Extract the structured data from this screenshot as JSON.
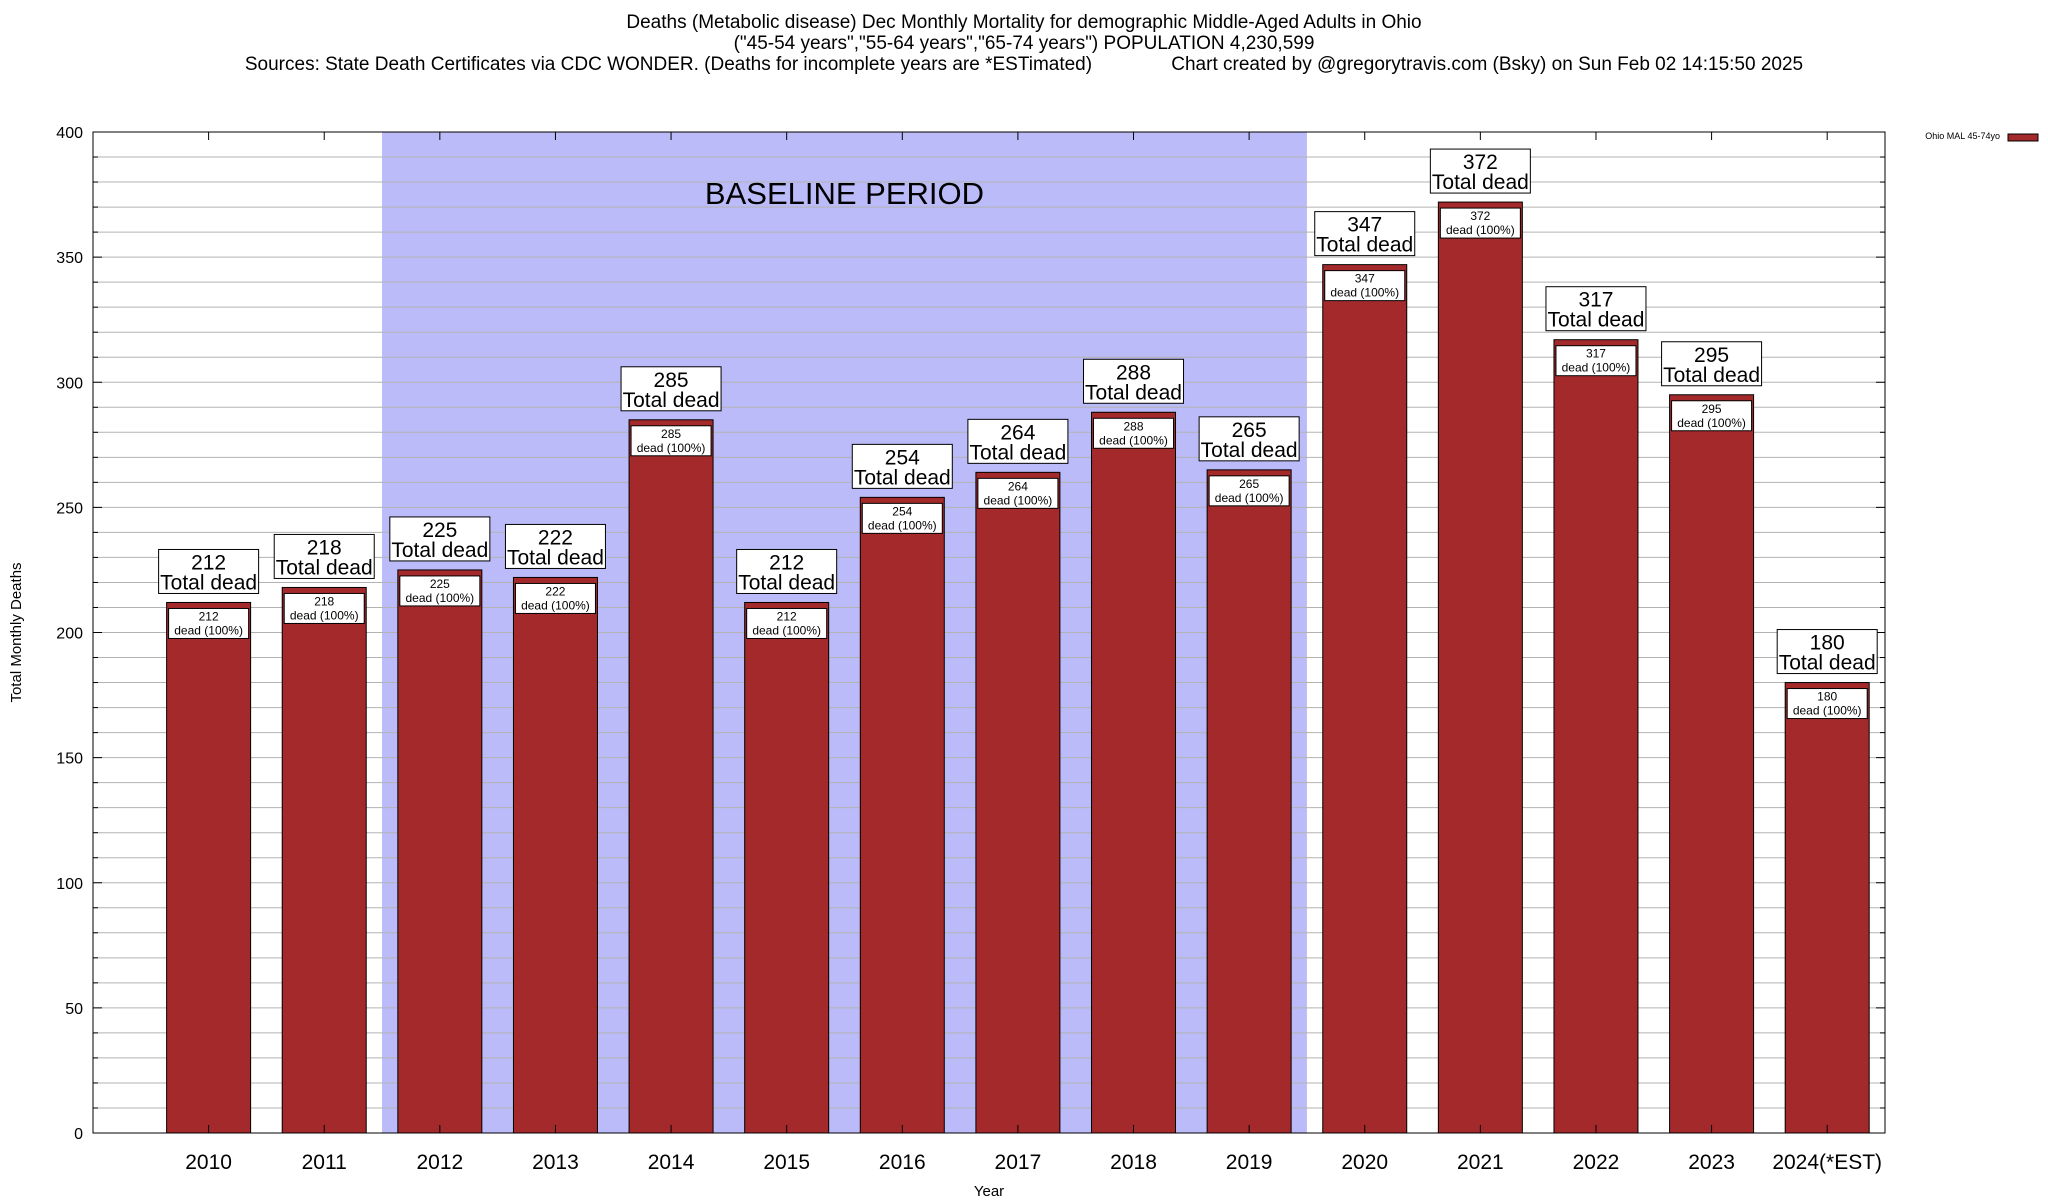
{
  "title": {
    "line1": "Deaths (Metabolic disease) Dec Monthly Mortality for demographic Middle-Aged Adults in Ohio",
    "line2": "(\"45-54 years\",\"55-64 years\",\"65-74 years\") POPULATION 4,230,599",
    "line3_left": "Sources: State Death Certificates via CDC WONDER. (Deaths for incomplete years are *ESTimated)",
    "line3_right": "Chart created by @gregorytravis.com (Bsky) on Sun Feb 02 14:15:50 2025"
  },
  "legend": {
    "label": "Ohio MAL 45-74yo",
    "color": "#a4292b"
  },
  "baseline": {
    "label": "BASELINE PERIOD",
    "start": "2012",
    "end": "2019",
    "color": "#bbbbf9"
  },
  "label_templates": {
    "big_suffix": "Total dead",
    "small_suffix": "dead (100%)"
  },
  "chart_data": {
    "type": "bar",
    "title": "Deaths (Metabolic disease) Dec Monthly Mortality for demographic Middle-Aged Adults in Ohio",
    "xlabel": "Year",
    "ylabel": "Total Monthly Deaths",
    "ylim": [
      0,
      400
    ],
    "yticks": [
      0,
      50,
      100,
      150,
      200,
      250,
      300,
      350,
      400
    ],
    "grid": true,
    "legend_position": "top-right",
    "categories": [
      "2010",
      "2011",
      "2012",
      "2013",
      "2014",
      "2015",
      "2016",
      "2017",
      "2018",
      "2019",
      "2020",
      "2021",
      "2022",
      "2023",
      "2024(*EST)"
    ],
    "series": [
      {
        "name": "Ohio MAL 45-74yo",
        "color": "#a4292b",
        "values": [
          212,
          218,
          225,
          222,
          285,
          212,
          254,
          264,
          288,
          265,
          347,
          372,
          317,
          295,
          180
        ]
      }
    ]
  }
}
